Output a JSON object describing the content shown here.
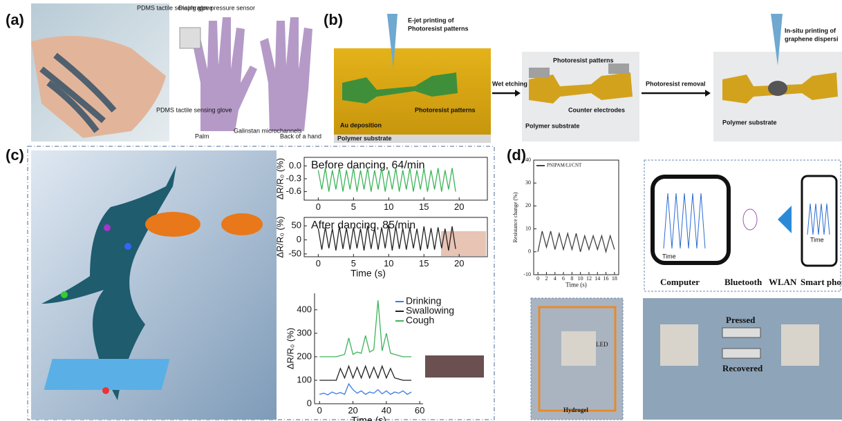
{
  "figure": {
    "panel_labels": [
      "(a)",
      "(b)",
      "(c)",
      "(d)"
    ],
    "a": {
      "labels": [
        "PDMS tactile sensing glove",
        "Diaphragm pressure sensor",
        "PDMS tactile sensing glove",
        "Palm",
        "Galinstan microchannels",
        "Back of a hand"
      ]
    },
    "b": {
      "step1": [
        "E-jet printing of",
        "Photoresist patterns",
        "Photoresist patterns",
        "Au deposition",
        "Polymer substrate"
      ],
      "arrows": [
        "Wet etching",
        "Photoresist removal"
      ],
      "step2": [
        "Photoresist patterns",
        "Counter electrodes",
        "Polymer substrate"
      ],
      "step3": [
        "In-situ printing of",
        "graphene dispersi",
        "Polymer substrate"
      ]
    },
    "d": {
      "devices": [
        "Computer",
        "Bluetooth",
        "WLAN",
        "Smart phone"
      ],
      "photo": [
        "LED",
        "Hydrogel",
        "Pressed",
        "Recovered"
      ],
      "screen_axis": [
        "Time",
        "Time"
      ]
    }
  },
  "chart_data": [
    {
      "type": "line",
      "title": "Before dancing, 64/min",
      "ylabel": "ΔR/R₀ (%)",
      "xlim": [
        -2,
        24
      ],
      "ylim": [
        -0.8,
        0.2
      ],
      "xticks": [
        0,
        5,
        10,
        15,
        20
      ],
      "yticks": [
        -0.6,
        -0.3,
        {
          "value": 0,
          "label": "0.0"
        }
      ],
      "x": [
        0,
        0.5,
        1,
        1.5,
        2,
        2.5,
        3,
        3.5,
        4,
        4.5,
        5,
        5.5,
        6,
        6.5,
        7,
        7.5,
        8,
        8.5,
        9,
        9.5,
        10,
        10.5,
        11,
        11.5,
        12,
        12.5,
        13,
        13.5,
        14,
        14.5,
        15,
        15.5,
        16,
        16.5,
        17,
        17.5,
        18,
        18.5,
        19,
        19.5
      ],
      "series": [
        {
          "color": "#3cb45a",
          "values": [
            -0.1,
            -0.55,
            -0.05,
            -0.6,
            -0.1,
            -0.55,
            -0.05,
            -0.6,
            -0.1,
            -0.55,
            -0.05,
            -0.6,
            -0.1,
            -0.55,
            -0.05,
            -0.6,
            -0.1,
            -0.55,
            -0.05,
            -0.6,
            -0.1,
            -0.55,
            -0.05,
            -0.6,
            -0.1,
            -0.55,
            -0.05,
            -0.6,
            -0.1,
            -0.55,
            -0.05,
            -0.6,
            -0.1,
            -0.55,
            -0.05,
            -0.6,
            -0.1,
            -0.55,
            -0.05,
            -0.6
          ]
        }
      ]
    },
    {
      "type": "line",
      "title": "After dancing, 85/min",
      "ylabel": "ΔR/R₀ (%)",
      "xlabel": "Time (s)",
      "xlim": [
        -2,
        24
      ],
      "ylim": [
        -60,
        80
      ],
      "xticks": [
        0,
        5,
        10,
        15,
        20
      ],
      "yticks": [
        -50,
        0,
        50
      ],
      "x": [
        0,
        0.5,
        1,
        1.5,
        2,
        2.5,
        3,
        3.5,
        4,
        4.5,
        5,
        5.5,
        6,
        6.5,
        7,
        7.5,
        8,
        8.5,
        9,
        9.5,
        10,
        10.5,
        11,
        11.5,
        12,
        12.5,
        13,
        13.5,
        14,
        14.5,
        15,
        15.5,
        16,
        16.5,
        17,
        17.5,
        18,
        18.5,
        19,
        19.5
      ],
      "series": [
        {
          "color": "#222222",
          "values": [
            40,
            -35,
            45,
            -30,
            40,
            -38,
            48,
            -32,
            42,
            -35,
            45,
            -30,
            40,
            -38,
            50,
            -32,
            42,
            -35,
            45,
            -30,
            55,
            -38,
            48,
            -32,
            42,
            -35,
            45,
            -30,
            40,
            -38,
            48,
            -32,
            42,
            -35,
            45,
            -30,
            40,
            -38,
            48,
            -32
          ]
        }
      ]
    },
    {
      "type": "line",
      "ylabel": "ΔR/R₀ (%)",
      "xlabel": "Time (s)",
      "xlim": [
        -3,
        62
      ],
      "ylim": [
        0,
        470
      ],
      "xticks": [
        0,
        20,
        40,
        60
      ],
      "yticks": [
        0,
        100,
        200,
        300,
        400
      ],
      "x": [
        0,
        2.5,
        5,
        7.5,
        10,
        12.5,
        15,
        17.5,
        20,
        22.5,
        25,
        27.5,
        30,
        32.5,
        35,
        37.5,
        40,
        42.5,
        45,
        47.5,
        50,
        52.5,
        55
      ],
      "series": [
        {
          "name": "Drinking",
          "color": "#3a7be0",
          "values": [
            40,
            45,
            38,
            50,
            42,
            48,
            40,
            85,
            60,
            45,
            55,
            40,
            50,
            45,
            60,
            42,
            55,
            40,
            50,
            45,
            55,
            40,
            50
          ]
        },
        {
          "name": "Swallowing",
          "color": "#222222",
          "values": [
            100,
            100,
            100,
            100,
            100,
            150,
            110,
            160,
            110,
            155,
            110,
            160,
            110,
            155,
            110,
            160,
            110,
            150,
            110,
            105,
            100,
            100,
            100
          ]
        },
        {
          "name": "Cough",
          "color": "#3cb45a",
          "values": [
            200,
            200,
            200,
            200,
            200,
            205,
            210,
            280,
            210,
            220,
            215,
            290,
            220,
            230,
            440,
            225,
            300,
            215,
            210,
            205,
            200,
            200,
            200
          ]
        }
      ]
    },
    {
      "type": "line",
      "ylabel": "Resistance change (%)",
      "xlabel": "Time (s)",
      "xlim": [
        -1,
        19
      ],
      "ylim": [
        -10,
        40
      ],
      "xticks": [
        0,
        2,
        4,
        6,
        8,
        10,
        12,
        14,
        16,
        18
      ],
      "yticks": [
        -10,
        0,
        10,
        20,
        30,
        40
      ],
      "x": [
        0,
        1,
        2,
        3,
        4,
        5,
        6,
        7,
        8,
        9,
        10,
        11,
        12,
        13,
        14,
        15,
        16,
        17,
        18
      ],
      "series": [
        {
          "name": "PNIPAM/LI/CNT",
          "color": "#444444",
          "values": [
            0,
            9,
            2,
            9,
            1,
            8,
            1,
            8,
            1,
            8,
            0,
            7,
            1,
            7,
            1,
            7,
            0,
            7,
            1
          ]
        }
      ]
    }
  ]
}
